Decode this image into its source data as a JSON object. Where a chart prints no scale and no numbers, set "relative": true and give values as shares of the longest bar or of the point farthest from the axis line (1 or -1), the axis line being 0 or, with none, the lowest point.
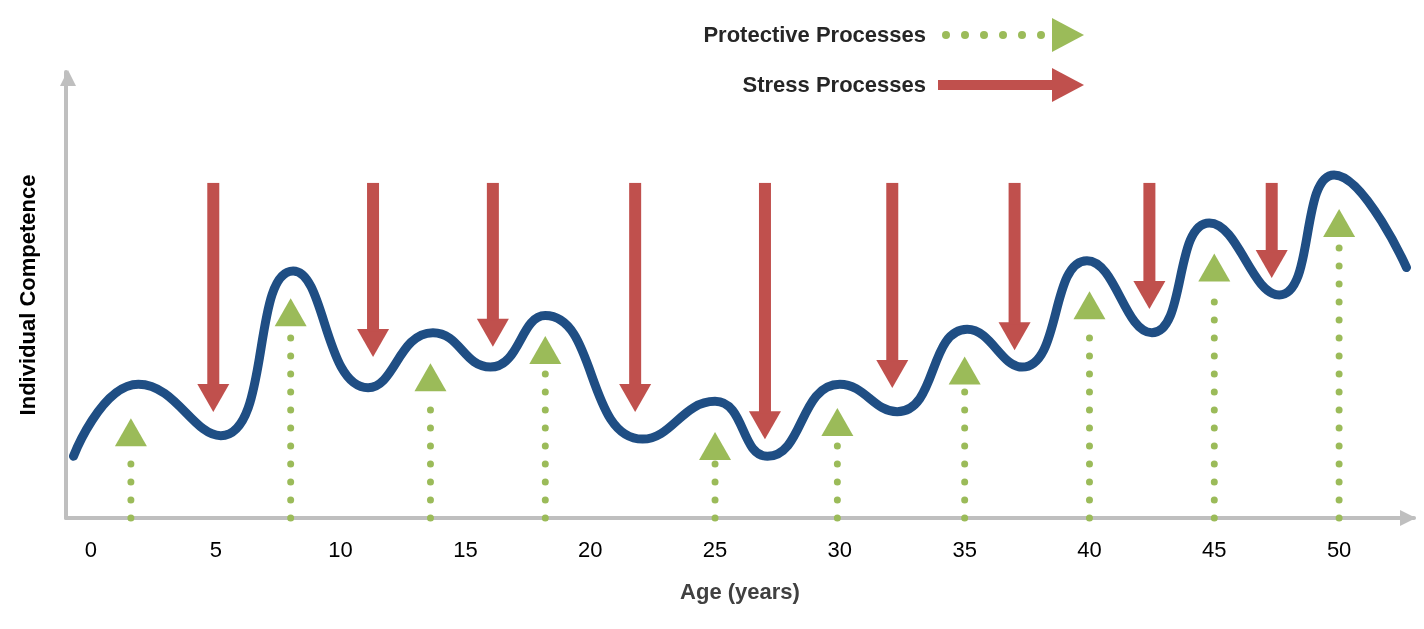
{
  "chart_data": {
    "type": "line",
    "relative": true,
    "xlabel": "Age (years)",
    "ylabel": "Individual Competence",
    "xlim": [
      -1,
      53
    ],
    "xticks": [
      0,
      5,
      10,
      15,
      20,
      25,
      30,
      35,
      40,
      45,
      50
    ],
    "tick_labels": "x",
    "grid": false,
    "legend": "top right",
    "marker": "none",
    "series": [
      {
        "color": "#1f4e84",
        "line_style": "solid",
        "x": [
          -0.7,
          1.9,
          5.2,
          8.1,
          11.1,
          13.7,
          16.0,
          18.2,
          22.1,
          25,
          27.1,
          30,
          32.3,
          35.1,
          37.3,
          39.9,
          42.5,
          44.8,
          47.6,
          49.8,
          52.7
        ],
        "values": [
          0.18,
          0.39,
          0.24,
          0.72,
          0.38,
          0.54,
          0.44,
          0.59,
          0.23,
          0.34,
          0.18,
          0.39,
          0.31,
          0.55,
          0.44,
          0.75,
          0.54,
          0.86,
          0.65,
          1.0,
          0.73
        ]
      },
      {
        "type": "scatter",
        "name": "Protective Processes",
        "color": "#9bbb59",
        "marker": "triangle",
        "line_style": "dotted",
        "x": [
          1.6,
          8.0,
          13.6,
          18.2,
          25,
          29.9,
          35,
          40,
          45,
          50
        ],
        "values": [
          0.25,
          0.6,
          0.41,
          0.49,
          0.21,
          0.28,
          0.43,
          0.62,
          0.73,
          0.86
        ]
      },
      {
        "type": "scatter",
        "name": "Stress Processes",
        "color": "#c0504d",
        "marker": "triangle",
        "line_style": "solid",
        "x": [
          4.9,
          11.3,
          16.1,
          21.8,
          27.0,
          32.1,
          37.0,
          42.4,
          47.3
        ],
        "values": [
          0.35,
          0.51,
          0.54,
          0.35,
          0.27,
          0.42,
          0.53,
          0.65,
          0.74
        ]
      }
    ]
  }
}
